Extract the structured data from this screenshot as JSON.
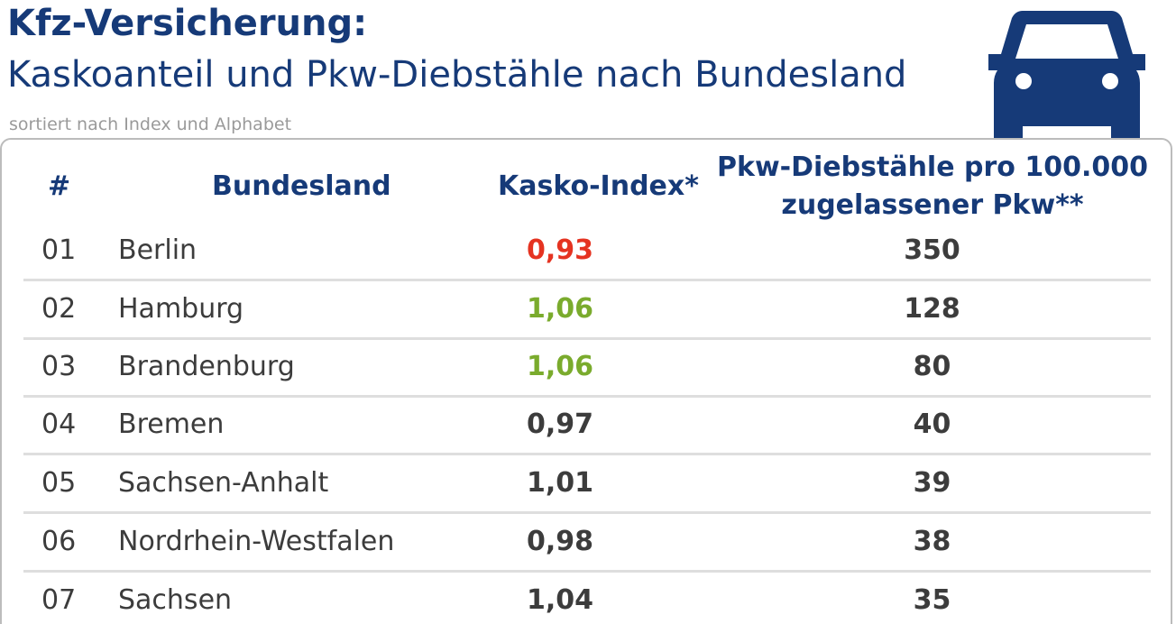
{
  "header": {
    "title": "Kfz-Versicherung:",
    "subtitle": "Kaskoanteil und Pkw-Diebstähle nach Bundesland",
    "note": "sortiert nach Index und Alphabet",
    "icon": "car-icon"
  },
  "colors": {
    "brand_blue": "#163a78",
    "low_index_red": "#e53321",
    "high_index_green": "#7aab2d",
    "neutral_value": "#3c3c3c"
  },
  "chart_data": {
    "type": "table",
    "title": "Kfz-Versicherung:",
    "subtitle": "Kaskoanteil und Pkw-Diebstähle nach Bundesland",
    "note": "sortiert nach Index und Alphabet",
    "columns": [
      "#",
      "Bundesland",
      "Kasko-Index*",
      "Pkw-Diebstähle pro 100.000 zugelassener Pkw**"
    ],
    "rows": [
      {
        "rank": "01",
        "state": "Berlin",
        "kasko": "0,93",
        "thefts": "350",
        "highlight": "red"
      },
      {
        "rank": "02",
        "state": "Hamburg",
        "kasko": "1,06",
        "thefts": "128",
        "highlight": "green"
      },
      {
        "rank": "03",
        "state": "Brandenburg",
        "kasko": "1,06",
        "thefts": "80",
        "highlight": "green"
      },
      {
        "rank": "04",
        "state": "Bremen",
        "kasko": "0,97",
        "thefts": "40",
        "highlight": "none"
      },
      {
        "rank": "05",
        "state": "Sachsen-Anhalt",
        "kasko": "1,01",
        "thefts": "39",
        "highlight": "none"
      },
      {
        "rank": "06",
        "state": "Nordrhein-Westfalen",
        "kasko": "0,98",
        "thefts": "38",
        "highlight": "none"
      },
      {
        "rank": "07",
        "state": "Sachsen",
        "kasko": "1,04",
        "thefts": "35",
        "highlight": "none"
      }
    ]
  }
}
